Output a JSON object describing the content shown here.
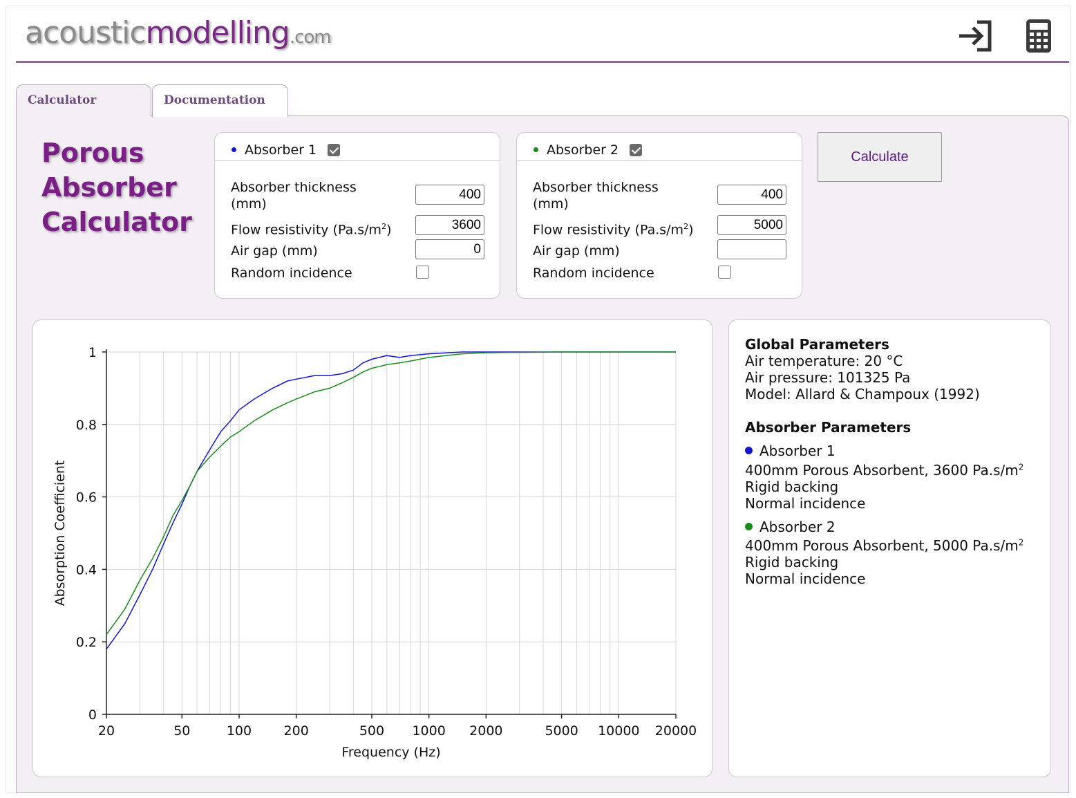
{
  "header": {
    "logo_part1": "acoustic",
    "logo_part2": "modelling",
    "logo_part3": ".com",
    "icons": [
      "sign-in-icon",
      "calculator-icon"
    ]
  },
  "tabs": [
    {
      "label": "Calculator",
      "active": true
    },
    {
      "label": "Documentation",
      "active": false
    }
  ],
  "page_title": [
    "Porous",
    "Absorber",
    "Calculator"
  ],
  "absorbers": [
    {
      "title": "Absorber 1",
      "color": "#1515d0",
      "enabled": true,
      "thickness_label_1": "Absorber thickness",
      "thickness_label_2": "(mm)",
      "thickness": "400",
      "flow_label": "Flow resistivity (Pa.s/m",
      "flow_sup": "2",
      "flow_label_end": ")",
      "flow": "3600",
      "airgap_label": "Air gap (mm)",
      "airgap": "0",
      "random_label": "Random incidence",
      "random": false
    },
    {
      "title": "Absorber 2",
      "color": "#1a8a1a",
      "enabled": true,
      "thickness_label_1": "Absorber thickness",
      "thickness_label_2": "(mm)",
      "thickness": "400",
      "flow_label": "Flow resistivity (Pa.s/m",
      "flow_sup": "2",
      "flow_label_end": ")",
      "flow": "5000",
      "airgap_label": "Air gap (mm)",
      "airgap": "",
      "random_label": "Random incidence",
      "random": false
    }
  ],
  "calculate_label": "Calculate",
  "info": {
    "global_heading": "Global Parameters",
    "air_temp": "Air temperature: 20 °C",
    "air_pressure": "Air pressure: 101325 Pa",
    "model": "Model: Allard & Champoux (1992)",
    "absorber_heading": "Absorber Parameters",
    "abs1_name": "Absorber 1",
    "abs1_desc": "400mm Porous Absorbent, 3600 Pa.s/m",
    "abs1_backing": "Rigid backing",
    "abs1_incidence": "Normal incidence",
    "abs2_name": "Absorber 2",
    "abs2_desc": "400mm Porous Absorbent, 5000 Pa.s/m",
    "abs2_backing": "Rigid backing",
    "abs2_incidence": "Normal incidence",
    "sup": "2"
  },
  "chart_data": {
    "type": "line",
    "xlabel": "Frequency (Hz)",
    "ylabel": "Absorption Coefficient",
    "x_scale": "log",
    "xlim": [
      20,
      20000
    ],
    "ylim": [
      0,
      1
    ],
    "x_ticks": [
      20,
      50,
      100,
      200,
      500,
      1000,
      2000,
      5000,
      10000,
      20000
    ],
    "y_ticks": [
      0,
      0.2,
      0.4,
      0.6,
      0.8,
      1
    ],
    "y_tick_labels": [
      "0",
      "0.2",
      "0.4",
      "0.6",
      "0.8",
      "1"
    ],
    "grid": true,
    "series": [
      {
        "name": "Absorber 1",
        "color": "#1515d0",
        "points": [
          [
            20,
            0.18
          ],
          [
            25,
            0.25
          ],
          [
            30,
            0.33
          ],
          [
            35,
            0.4
          ],
          [
            40,
            0.47
          ],
          [
            45,
            0.53
          ],
          [
            50,
            0.58
          ],
          [
            55,
            0.63
          ],
          [
            60,
            0.67
          ],
          [
            70,
            0.73
          ],
          [
            80,
            0.78
          ],
          [
            90,
            0.81
          ],
          [
            100,
            0.84
          ],
          [
            120,
            0.87
          ],
          [
            150,
            0.9
          ],
          [
            180,
            0.92
          ],
          [
            200,
            0.925
          ],
          [
            250,
            0.935
          ],
          [
            300,
            0.935
          ],
          [
            350,
            0.94
          ],
          [
            400,
            0.95
          ],
          [
            450,
            0.97
          ],
          [
            500,
            0.98
          ],
          [
            600,
            0.99
          ],
          [
            700,
            0.985
          ],
          [
            800,
            0.99
          ],
          [
            1000,
            0.995
          ],
          [
            1500,
            1.0
          ],
          [
            2000,
            1.0
          ],
          [
            5000,
            1.0
          ],
          [
            10000,
            1.0
          ],
          [
            20000,
            1.0
          ]
        ]
      },
      {
        "name": "Absorber 2",
        "color": "#1a8a1a",
        "points": [
          [
            20,
            0.22
          ],
          [
            25,
            0.29
          ],
          [
            30,
            0.37
          ],
          [
            35,
            0.43
          ],
          [
            40,
            0.49
          ],
          [
            45,
            0.55
          ],
          [
            50,
            0.59
          ],
          [
            55,
            0.63
          ],
          [
            60,
            0.67
          ],
          [
            70,
            0.71
          ],
          [
            80,
            0.74
          ],
          [
            90,
            0.765
          ],
          [
            100,
            0.78
          ],
          [
            120,
            0.81
          ],
          [
            150,
            0.84
          ],
          [
            180,
            0.86
          ],
          [
            200,
            0.87
          ],
          [
            250,
            0.89
          ],
          [
            300,
            0.9
          ],
          [
            350,
            0.915
          ],
          [
            400,
            0.93
          ],
          [
            450,
            0.945
          ],
          [
            500,
            0.955
          ],
          [
            600,
            0.965
          ],
          [
            700,
            0.97
          ],
          [
            800,
            0.975
          ],
          [
            1000,
            0.985
          ],
          [
            1500,
            0.995
          ],
          [
            2000,
            0.998
          ],
          [
            5000,
            1.0
          ],
          [
            10000,
            1.0
          ],
          [
            20000,
            1.0
          ]
        ]
      }
    ]
  }
}
